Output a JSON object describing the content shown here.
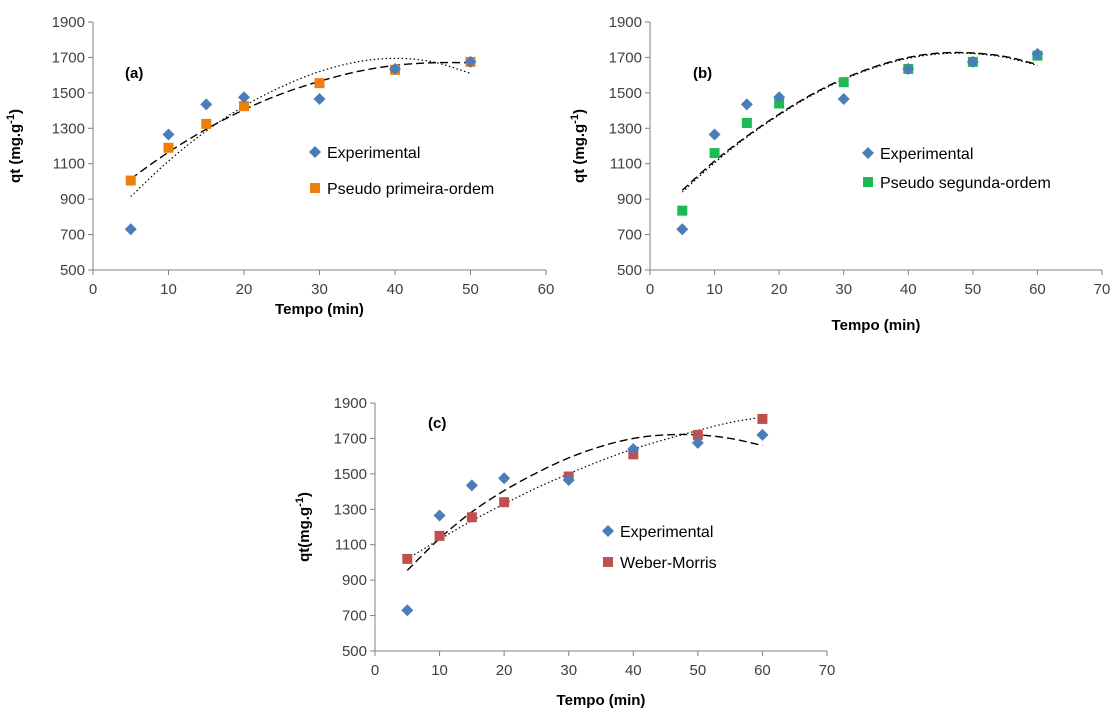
{
  "colors": {
    "experimental": "#4a7ebb",
    "pseudo_primeira": "#f07f09",
    "pseudo_segunda": "#1db954",
    "weber_morris": "#c0504d",
    "axis": "#808080",
    "trend": "#000000"
  },
  "chart_data": [
    {
      "type": "scatter",
      "panel_label": "(a)",
      "xlabel": "Tempo (min)",
      "ylabel_main": "qt (mg.g",
      "ylabel_sup": "-1",
      "ylabel_end": ")",
      "xlim": [
        0,
        60
      ],
      "ylim": [
        500,
        1900
      ],
      "xticks": [
        "0",
        "10",
        "20",
        "30",
        "40",
        "50",
        "60"
      ],
      "yticks": [
        "500",
        "700",
        "900",
        "1100",
        "1300",
        "1500",
        "1700",
        "1900"
      ],
      "legend_position": "center-right",
      "series": [
        {
          "name": "Experimental",
          "marker": "diamond",
          "color_key": "experimental",
          "x": [
            5,
            10,
            15,
            20,
            30,
            40,
            50
          ],
          "y": [
            730,
            1265,
            1435,
            1475,
            1465,
            1635,
            1675
          ]
        },
        {
          "name": "Pseudo primeira-ordem",
          "marker": "square",
          "color_key": "pseudo_primeira",
          "x": [
            5,
            10,
            15,
            20,
            30,
            40,
            50
          ],
          "y": [
            1005,
            1190,
            1325,
            1425,
            1555,
            1630,
            1675
          ]
        }
      ],
      "trendlines": [
        {
          "style": "dashed",
          "x": [
            5,
            10,
            15,
            20,
            25,
            30,
            35,
            40,
            45,
            50
          ],
          "y": [
            1015,
            1165,
            1295,
            1405,
            1495,
            1565,
            1620,
            1655,
            1670,
            1670
          ]
        },
        {
          "style": "dotted",
          "x": [
            5,
            10,
            15,
            20,
            25,
            30,
            35,
            40,
            45,
            50
          ],
          "y": [
            915,
            1115,
            1285,
            1425,
            1535,
            1620,
            1675,
            1695,
            1675,
            1610
          ]
        }
      ]
    },
    {
      "type": "scatter",
      "panel_label": "(b)",
      "xlabel": "Tempo (min)",
      "ylabel_main": "qt (mg.g",
      "ylabel_sup": "-1",
      "ylabel_end": ")",
      "xlim": [
        0,
        70
      ],
      "ylim": [
        500,
        1900
      ],
      "xticks": [
        "0",
        "10",
        "20",
        "30",
        "40",
        "50",
        "60",
        "70"
      ],
      "yticks": [
        "500",
        "700",
        "900",
        "1100",
        "1300",
        "1500",
        "1700",
        "1900"
      ],
      "legend_position": "center-right",
      "series": [
        {
          "name": "Experimental",
          "marker": "diamond",
          "color_key": "experimental",
          "x": [
            5,
            10,
            15,
            20,
            30,
            40,
            50,
            60
          ],
          "y": [
            730,
            1265,
            1435,
            1475,
            1465,
            1635,
            1675,
            1720
          ]
        },
        {
          "name": "Pseudo segunda-ordem",
          "marker": "square",
          "color_key": "pseudo_segunda",
          "x": [
            5,
            10,
            15,
            20,
            30,
            40,
            50,
            60
          ],
          "y": [
            835,
            1160,
            1330,
            1440,
            1560,
            1635,
            1675,
            1710
          ]
        }
      ],
      "trendlines": [
        {
          "style": "dashed",
          "x": [
            5,
            10,
            15,
            20,
            25,
            30,
            35,
            40,
            45,
            50,
            55,
            60
          ],
          "y": [
            950,
            1115,
            1255,
            1380,
            1490,
            1580,
            1650,
            1700,
            1725,
            1725,
            1705,
            1660
          ]
        },
        {
          "style": "dotted",
          "x": [
            5,
            10,
            15,
            20,
            25,
            30,
            35,
            40,
            45,
            50,
            55,
            60
          ],
          "y": [
            940,
            1105,
            1250,
            1375,
            1485,
            1575,
            1645,
            1695,
            1720,
            1722,
            1700,
            1655
          ]
        }
      ]
    },
    {
      "type": "scatter",
      "panel_label": "(c)",
      "xlabel": "Tempo (min)",
      "ylabel_main": "qt(mg.g",
      "ylabel_sup": "-1",
      "ylabel_end": ")",
      "xlim": [
        0,
        70
      ],
      "ylim": [
        500,
        1900
      ],
      "xticks": [
        "0",
        "10",
        "20",
        "30",
        "40",
        "50",
        "60",
        "70"
      ],
      "yticks": [
        "500",
        "700",
        "900",
        "1100",
        "1300",
        "1500",
        "1700",
        "1900"
      ],
      "legend_position": "center-right",
      "series": [
        {
          "name": "Experimental",
          "marker": "diamond",
          "color_key": "experimental",
          "x": [
            5,
            10,
            15,
            20,
            30,
            40,
            50,
            60
          ],
          "y": [
            730,
            1265,
            1435,
            1475,
            1465,
            1640,
            1675,
            1720
          ]
        },
        {
          "name": "Weber-Morris",
          "marker": "square",
          "color_key": "weber_morris",
          "x": [
            5,
            10,
            15,
            20,
            30,
            40,
            50,
            60
          ],
          "y": [
            1020,
            1150,
            1255,
            1340,
            1485,
            1610,
            1720,
            1810
          ]
        }
      ],
      "trendlines": [
        {
          "style": "dashed",
          "x": [
            5,
            10,
            15,
            20,
            25,
            30,
            35,
            40,
            45,
            50,
            55,
            60
          ],
          "y": [
            955,
            1135,
            1285,
            1405,
            1505,
            1590,
            1655,
            1700,
            1720,
            1720,
            1700,
            1660
          ]
        },
        {
          "style": "dotted",
          "x": [
            5,
            10,
            15,
            20,
            25,
            30,
            35,
            40,
            45,
            50,
            55,
            60
          ],
          "y": [
            1020,
            1130,
            1235,
            1330,
            1420,
            1500,
            1575,
            1640,
            1695,
            1745,
            1790,
            1820
          ]
        }
      ]
    }
  ]
}
